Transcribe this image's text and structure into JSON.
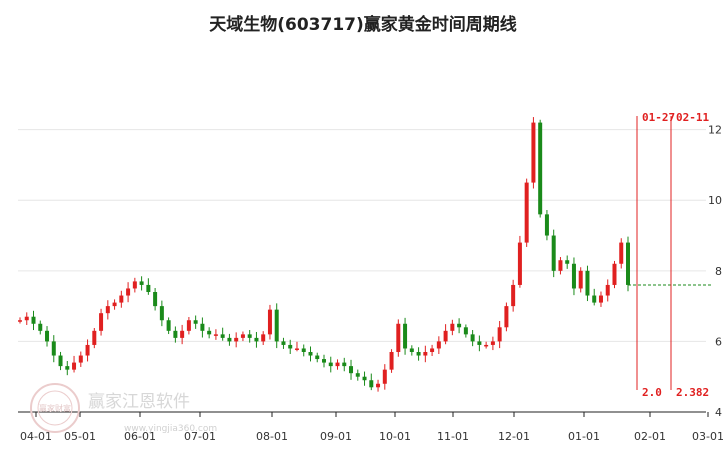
{
  "colors": {
    "up": "#e02020",
    "down": "#1a8a1a",
    "grid": "#e6e6e6",
    "axis": "#222222",
    "cycle_line": "#e02020",
    "current_level": "#1a8a1a"
  },
  "watermark": {
    "text": "赢家江恩软件",
    "url": "www.yingjia360.com",
    "seal_text": "赢家财富"
  },
  "chart_data": {
    "type": "candlestick",
    "title": "天域生物(603717)赢家黄金时间周期线",
    "ylim": [
      4,
      12.5
    ],
    "y_ticks": [
      4,
      6,
      8,
      10,
      12
    ],
    "x_tick_labels": [
      "04-01",
      "05-01",
      "06-01",
      "07-01",
      "08-01",
      "09-01",
      "10-01",
      "11-01",
      "12-01",
      "01-01",
      "02-01",
      "03-01"
    ],
    "grid": "horizontal",
    "series": [
      {
        "values": [
          6.6,
          6.7,
          6.5,
          6.3,
          6.0,
          5.6,
          5.3,
          5.2,
          5.4,
          5.6,
          5.9,
          6.3,
          6.8,
          7.0,
          7.1,
          7.3,
          7.5,
          7.7,
          7.6,
          7.4,
          7.0,
          6.6,
          6.3,
          6.1,
          6.3,
          6.6,
          6.5,
          6.3,
          6.2,
          6.2,
          6.1,
          6.0,
          6.1,
          6.2,
          6.1,
          6.0,
          6.2,
          6.9,
          6.0,
          5.9,
          5.8,
          5.8,
          5.7,
          5.6,
          5.5,
          5.4,
          5.3,
          5.4,
          5.3,
          5.1,
          5.0,
          4.9,
          4.7,
          4.8,
          5.2,
          5.7,
          6.5,
          5.8,
          5.7,
          5.6,
          5.7,
          5.8,
          6.0,
          6.3,
          6.5,
          6.4,
          6.2,
          6.0,
          5.9,
          5.9,
          6.0,
          6.4,
          7.0,
          7.6,
          8.8,
          10.5,
          12.2,
          9.6,
          9.0,
          8.0,
          8.3,
          8.2,
          7.5,
          8.0,
          7.3,
          7.1,
          7.3,
          7.6,
          8.2,
          8.8,
          7.6
        ]
      },
      {
        "name": "",
        "values": []
      }
    ],
    "annotations": [
      {
        "label": "01-27",
        "marker": "2.0"
      },
      {
        "label": "02-11",
        "marker": "2.382"
      }
    ],
    "current_level": 7.6
  }
}
